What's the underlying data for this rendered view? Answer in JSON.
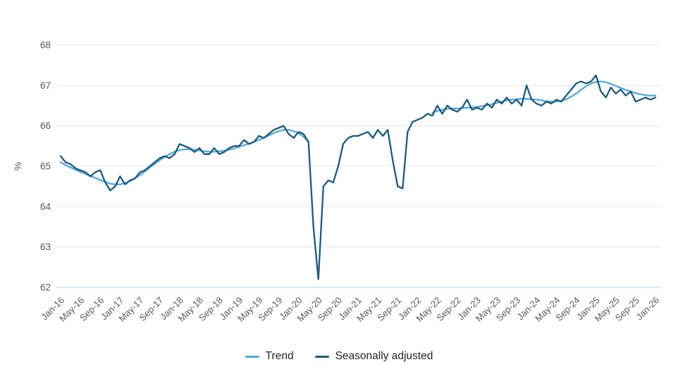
{
  "page": {
    "background": "#ffffff"
  },
  "colors": {
    "trend_line": "#54a8d5",
    "seasonally_adjusted_line": "#1d5a7d",
    "gridline": "#e8e8e8",
    "baseline_axis": "#cfdff2",
    "tick_text": "#595959",
    "legend_text": "#262626"
  },
  "legend": {
    "items": [
      {
        "label": "Trend"
      },
      {
        "label": "Seasonally adjusted"
      }
    ]
  },
  "chart_data": {
    "type": "line",
    "title": "",
    "xlabel": "",
    "ylabel": "%",
    "ylim": [
      62,
      68
    ],
    "y_ticks": [
      68,
      67,
      66,
      65,
      64,
      63,
      62
    ],
    "grid": "horizontal",
    "legend_position": "bottom-center",
    "x_unit": "month",
    "x_start": "Jan-16",
    "x_end": "Jan-26",
    "x_points": 121,
    "x_tick_every": 4,
    "x_tick_labels": [
      "Jan-16",
      "May-16",
      "Sep-16",
      "Jan-17",
      "May-17",
      "Sep-17",
      "Jan-18",
      "May-18",
      "Sep-18",
      "Jan-19",
      "May-19",
      "Sep-19",
      "Jan-20",
      "May-20",
      "Sep-20",
      "Jan-21",
      "May-21",
      "Sep-21",
      "Jan-22",
      "May-22",
      "Sep-22",
      "Jan-23",
      "May-23",
      "Sep-23",
      "Jan-24",
      "May-24",
      "Sep-24",
      "Jan-25",
      "May-25",
      "Sep-25",
      "Jan-26"
    ],
    "series": [
      {
        "name": "Trend",
        "color": "#54a8d5",
        "note": "suspended Apr-2020 to Mar-2022",
        "values": [
          65.1,
          65.03,
          64.97,
          64.91,
          64.86,
          64.81,
          64.76,
          64.71,
          64.66,
          64.61,
          64.57,
          64.55,
          64.55,
          64.58,
          64.63,
          64.7,
          64.78,
          64.87,
          64.97,
          65.06,
          65.15,
          65.23,
          65.3,
          65.36,
          65.4,
          65.42,
          65.42,
          65.41,
          65.39,
          65.37,
          65.36,
          65.36,
          65.37,
          65.38,
          65.41,
          65.44,
          65.48,
          65.52,
          65.56,
          65.6,
          65.65,
          65.7,
          65.76,
          65.82,
          65.87,
          65.9,
          65.9,
          65.87,
          65.82,
          65.73,
          65.6,
          null,
          null,
          null,
          null,
          null,
          null,
          null,
          null,
          null,
          null,
          null,
          null,
          null,
          null,
          null,
          null,
          null,
          null,
          null,
          null,
          null,
          null,
          null,
          null,
          66.33,
          66.37,
          66.4,
          66.42,
          66.43,
          66.43,
          66.44,
          66.45,
          66.46,
          66.47,
          66.49,
          66.51,
          66.54,
          66.57,
          66.6,
          66.63,
          66.65,
          66.66,
          66.67,
          66.67,
          66.66,
          66.65,
          66.63,
          66.61,
          66.6,
          66.6,
          66.62,
          66.66,
          66.72,
          66.8,
          66.89,
          66.98,
          67.05,
          67.09,
          67.1,
          67.08,
          67.04,
          66.99,
          66.94,
          66.89,
          66.85,
          66.81,
          66.78,
          66.76,
          66.75,
          66.75
        ]
      },
      {
        "name": "Seasonally adjusted",
        "color": "#1d5a7d",
        "values": [
          65.25,
          65.1,
          65.05,
          64.95,
          64.9,
          64.85,
          64.75,
          64.85,
          64.9,
          64.6,
          64.4,
          64.5,
          64.75,
          64.55,
          64.65,
          64.7,
          64.85,
          64.9,
          65.0,
          65.1,
          65.2,
          65.25,
          65.2,
          65.3,
          65.55,
          65.5,
          65.45,
          65.35,
          65.45,
          65.3,
          65.3,
          65.45,
          65.3,
          65.35,
          65.45,
          65.5,
          65.5,
          65.65,
          65.55,
          65.6,
          65.75,
          65.7,
          65.8,
          65.9,
          65.95,
          66.0,
          65.8,
          65.7,
          65.85,
          65.8,
          65.6,
          63.5,
          62.2,
          64.5,
          64.65,
          64.6,
          65.0,
          65.55,
          65.7,
          65.75,
          65.75,
          65.8,
          65.85,
          65.7,
          65.9,
          65.75,
          65.9,
          65.15,
          64.5,
          64.45,
          65.85,
          66.1,
          66.15,
          66.2,
          66.3,
          66.25,
          66.5,
          66.3,
          66.5,
          66.4,
          66.35,
          66.45,
          66.65,
          66.4,
          66.45,
          66.4,
          66.55,
          66.45,
          66.65,
          66.55,
          66.7,
          66.55,
          66.65,
          66.5,
          67.0,
          66.65,
          66.55,
          66.5,
          66.6,
          66.55,
          66.65,
          66.6,
          66.75,
          66.9,
          67.05,
          67.1,
          67.05,
          67.1,
          67.25,
          66.85,
          66.7,
          66.95,
          66.8,
          66.9,
          66.75,
          66.85,
          66.6,
          66.65,
          66.7,
          66.65,
          66.7
        ]
      }
    ]
  }
}
